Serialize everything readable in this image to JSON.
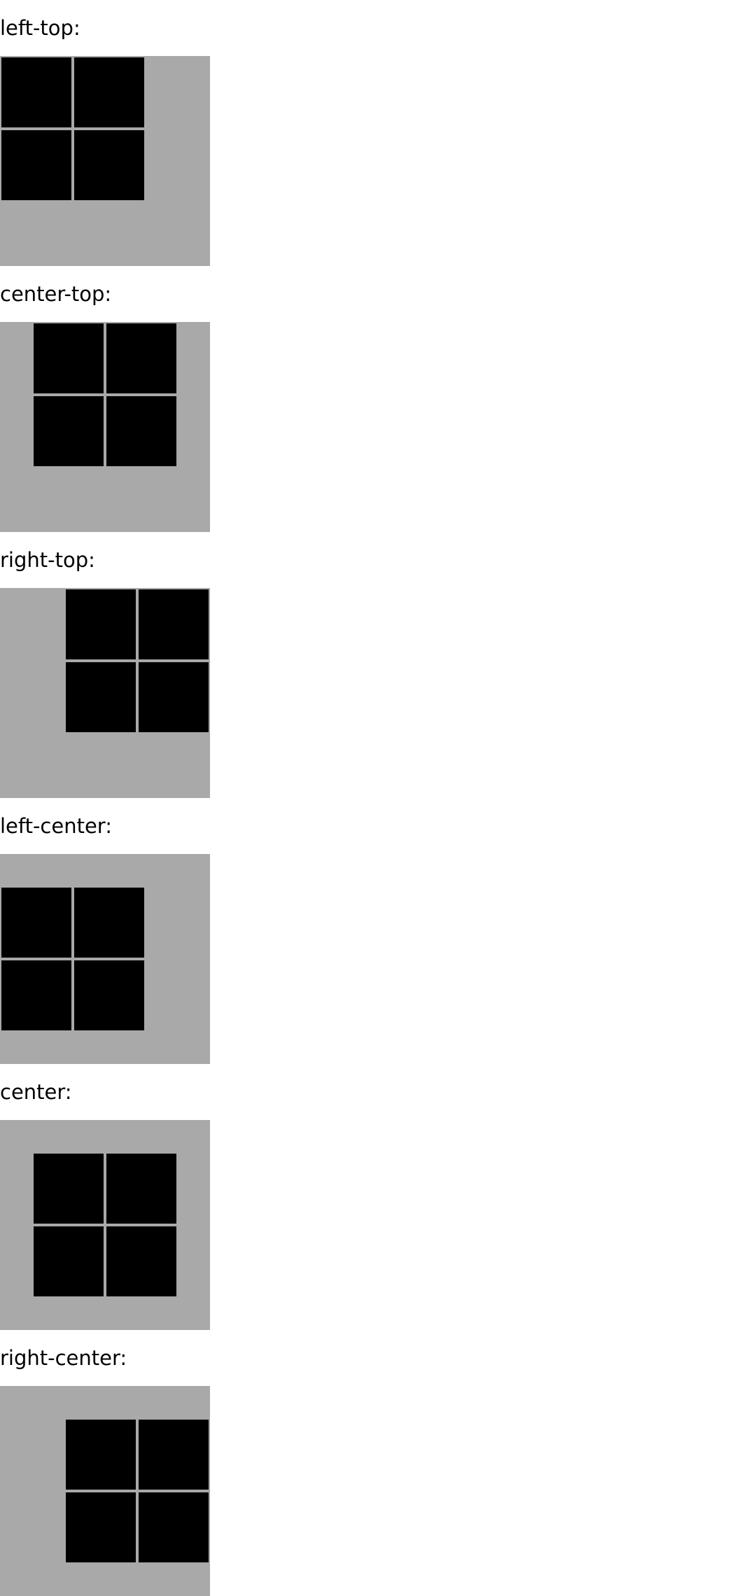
{
  "colors": {
    "background": "#ffffff",
    "box": "#a9a9a9",
    "cell": "#000000",
    "text": "#000000"
  },
  "demos": [
    {
      "label": "left-top:",
      "align": "left-top"
    },
    {
      "label": "center-top:",
      "align": "center-top"
    },
    {
      "label": "right-top:",
      "align": "right-top"
    },
    {
      "label": "left-center:",
      "align": "left-center"
    },
    {
      "label": "center:",
      "align": "center"
    },
    {
      "label": "right-center:",
      "align": "right-center"
    }
  ],
  "cells_per_box": 4
}
